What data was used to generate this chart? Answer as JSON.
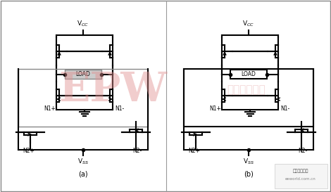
{
  "bg_color": "#ffffff",
  "fig_width": 4.7,
  "fig_height": 2.73,
  "dpi": 100,
  "watermark_text": "EPW",
  "watermark_sub": "电子产品世界",
  "watermark_color": "#e09090",
  "label_a": "(a)",
  "label_b": "(b)",
  "vcc": "V$_{CC}$",
  "vss": "V$_{SS}$",
  "load": "LOAD",
  "n1p": "N1+",
  "n1m": "N1-",
  "n2p": "N2+",
  "n2m": "N2-"
}
